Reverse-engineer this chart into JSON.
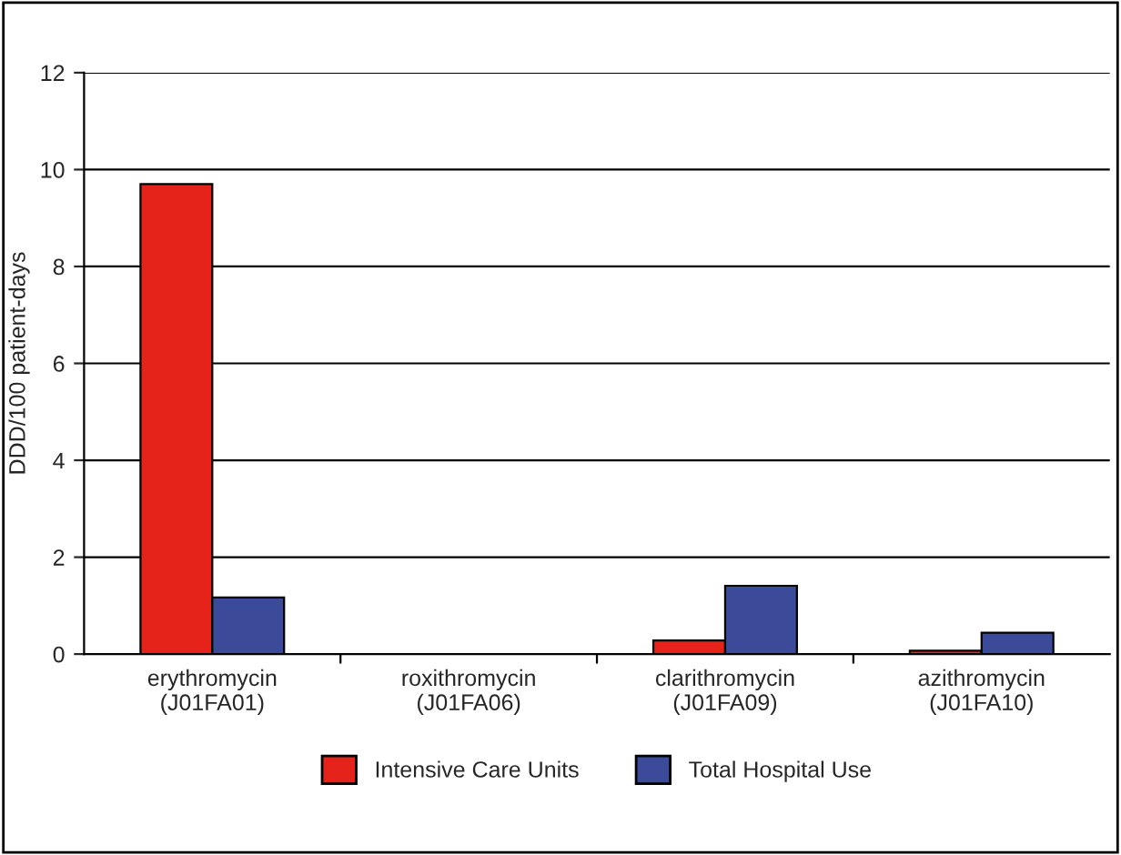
{
  "chart_data": {
    "type": "bar",
    "ylabel": "DDD/100 patient-days",
    "categories": [
      "erythromycin\n(J01FA01)",
      "roxithromycin\n(J01FA06)",
      "clarithromycin\n(J01FA09)",
      "azithromycin\n(J01FA10)"
    ],
    "series": [
      {
        "name": "Intensive Care Units",
        "color": "#e5231b",
        "values": [
          9.7,
          null,
          0.28,
          0.07
        ]
      },
      {
        "name": "Total Hospital Use",
        "color": "#3c4a9a",
        "values": [
          1.17,
          null,
          1.41,
          0.44
        ]
      }
    ],
    "ylim": [
      0,
      12
    ],
    "yticks": [
      0,
      2,
      4,
      6,
      8,
      10,
      12
    ],
    "grid": "y",
    "legend": "bottom"
  }
}
